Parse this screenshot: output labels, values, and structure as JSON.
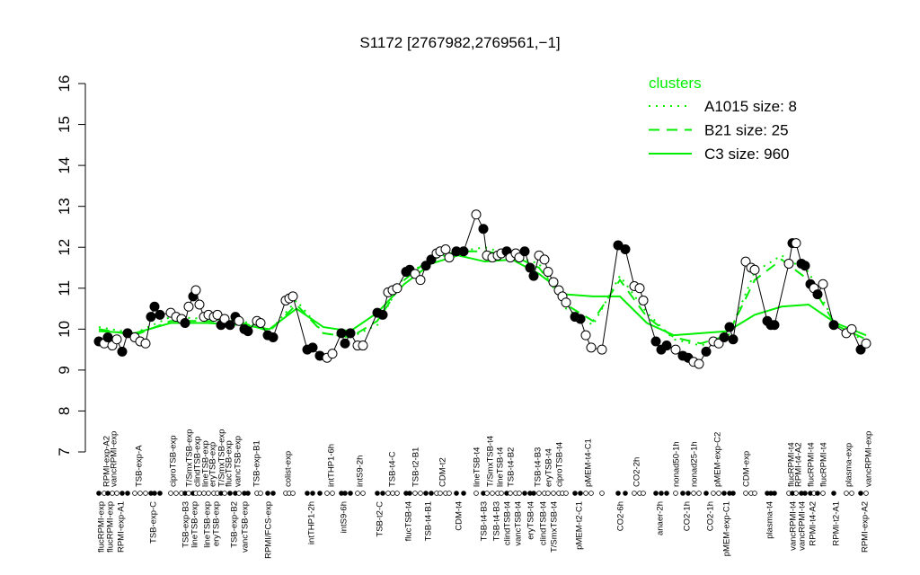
{
  "chart_data": {
    "type": "line",
    "title": "S1172 [2767982,2769561,−1]",
    "xlim": [
      100,
      975
    ],
    "ylim": [
      7,
      16
    ],
    "yticks": [
      7,
      8,
      9,
      10,
      11,
      12,
      13,
      14,
      15,
      16
    ],
    "points": {
      "color": "#000000",
      "x": [
        110,
        116,
        120,
        125,
        130,
        136,
        142,
        150,
        156,
        162,
        168,
        172,
        178,
        190,
        196,
        202,
        206,
        210,
        215,
        218,
        222,
        227,
        232,
        238,
        242,
        246,
        250,
        256,
        262,
        266,
        272,
        276,
        286,
        290,
        298,
        304,
        318,
        322,
        326,
        342,
        348,
        356,
        364,
        370,
        380,
        384,
        390,
        398,
        404,
        420,
        426,
        432,
        437,
        442,
        452,
        456,
        462,
        468,
        474,
        480,
        486,
        490,
        496,
        500,
        508,
        516,
        530,
        538,
        542,
        548,
        554,
        558,
        564,
        568,
        574,
        578,
        584,
        590,
        594,
        600,
        606,
        610,
        616,
        622,
        626,
        630,
        640,
        646,
        652,
        658,
        670,
        688,
        696,
        706,
        712,
        716,
        730,
        736,
        742,
        752,
        760,
        766,
        772,
        778,
        786,
        794,
        800,
        806,
        812,
        816,
        830,
        836,
        840,
        854,
        858,
        862,
        878,
        882,
        886,
        892,
        896,
        902,
        906,
        910,
        916,
        928,
        942,
        948,
        958,
        964
      ],
      "values": [
        9.7,
        9.65,
        9.8,
        9.6,
        9.75,
        9.45,
        9.9,
        9.8,
        9.7,
        9.65,
        10.3,
        10.55,
        10.35,
        10.4,
        10.3,
        10.25,
        10.15,
        10.55,
        10.8,
        10.95,
        10.6,
        10.3,
        10.35,
        10.3,
        10.35,
        10.1,
        10.25,
        10.1,
        10.3,
        10.2,
        10.0,
        9.95,
        10.2,
        10.15,
        9.85,
        9.8,
        10.7,
        10.75,
        10.8,
        9.5,
        9.55,
        9.35,
        9.3,
        9.4,
        9.9,
        9.65,
        9.9,
        9.6,
        9.6,
        10.4,
        10.35,
        10.9,
        10.95,
        11.0,
        11.4,
        11.45,
        11.35,
        11.2,
        11.55,
        11.7,
        11.85,
        11.9,
        11.95,
        11.75,
        11.9,
        11.9,
        12.8,
        12.45,
        11.8,
        11.75,
        11.8,
        11.85,
        11.9,
        11.75,
        11.85,
        11.75,
        11.9,
        11.5,
        11.3,
        11.8,
        11.7,
        11.4,
        11.15,
        10.95,
        10.8,
        10.65,
        10.3,
        10.25,
        9.85,
        9.55,
        9.5,
        12.05,
        11.95,
        11.05,
        11.0,
        10.7,
        9.7,
        9.5,
        9.6,
        9.5,
        9.35,
        9.3,
        9.2,
        9.15,
        9.45,
        9.7,
        9.65,
        9.8,
        10.05,
        9.75,
        11.65,
        11.5,
        11.45,
        10.2,
        10.1,
        10.1,
        11.6,
        12.1,
        12.1,
        11.6,
        11.55,
        11.1,
        11.0,
        10.85,
        11.1,
        10.1,
        9.9,
        10.0,
        9.5,
        9.65
      ],
      "filled": [
        true,
        false,
        true,
        false,
        false,
        true,
        true,
        false,
        false,
        false,
        true,
        true,
        true,
        false,
        false,
        false,
        true,
        false,
        true,
        false,
        false,
        false,
        false,
        false,
        false,
        true,
        false,
        true,
        true,
        false,
        true,
        true,
        false,
        false,
        true,
        true,
        false,
        false,
        false,
        true,
        true,
        true,
        false,
        false,
        true,
        true,
        true,
        false,
        false,
        true,
        true,
        false,
        false,
        false,
        true,
        true,
        false,
        false,
        true,
        true,
        false,
        false,
        false,
        false,
        true,
        true,
        false,
        true,
        false,
        false,
        false,
        false,
        true,
        false,
        false,
        false,
        true,
        true,
        true,
        false,
        false,
        false,
        false,
        false,
        false,
        false,
        true,
        true,
        false,
        false,
        false,
        true,
        true,
        false,
        false,
        false,
        true,
        true,
        true,
        false,
        true,
        true,
        false,
        false,
        true,
        false,
        false,
        true,
        true,
        true,
        false,
        false,
        false,
        true,
        true,
        true,
        false,
        true,
        false,
        true,
        true,
        true,
        false,
        true,
        false,
        true,
        false,
        false,
        true,
        false
      ]
    },
    "legend_title": "clusters",
    "series": [
      {
        "name": "A1015 size: 8",
        "color": "#00ee00",
        "linestyle": "dotted",
        "x": [
          110,
          150,
          190,
          230,
          270,
          300,
          330,
          360,
          390,
          420,
          450,
          480,
          510,
          540,
          570,
          600,
          630,
          660,
          690,
          720,
          750,
          780,
          810,
          840,
          870,
          900,
          930,
          964
        ],
        "values": [
          10.05,
          9.9,
          10.3,
          10.25,
          10.2,
          9.95,
          10.7,
          9.9,
          9.8,
          10.1,
          11.3,
          11.7,
          11.9,
          12.0,
          11.8,
          11.6,
          10.5,
          10.1,
          11.3,
          10.4,
          9.75,
          9.6,
          9.8,
          11.4,
          11.8,
          11.4,
          10.1,
          9.7
        ]
      },
      {
        "name": "B21 size: 25",
        "color": "#00ee00",
        "linestyle": "dashed",
        "x": [
          110,
          150,
          190,
          230,
          270,
          300,
          330,
          360,
          390,
          420,
          450,
          480,
          510,
          540,
          570,
          600,
          630,
          660,
          690,
          720,
          750,
          780,
          810,
          840,
          870,
          900,
          930,
          964
        ],
        "values": [
          10.0,
          9.85,
          10.2,
          10.2,
          10.15,
          9.95,
          10.6,
          9.9,
          9.8,
          10.2,
          11.2,
          11.75,
          11.9,
          11.9,
          11.8,
          11.5,
          10.6,
          10.2,
          11.2,
          10.3,
          9.8,
          9.65,
          9.85,
          11.2,
          11.7,
          11.2,
          10.1,
          9.75
        ]
      },
      {
        "name": "C3 size: 960",
        "color": "#00ee00",
        "linestyle": "solid",
        "x": [
          110,
          150,
          190,
          230,
          270,
          300,
          330,
          360,
          390,
          420,
          450,
          480,
          510,
          540,
          570,
          600,
          630,
          660,
          690,
          720,
          750,
          780,
          810,
          840,
          870,
          900,
          930,
          964
        ],
        "values": [
          9.95,
          9.9,
          10.15,
          10.15,
          10.1,
          10.0,
          10.5,
          10.05,
          9.95,
          10.4,
          11.1,
          11.6,
          11.8,
          11.65,
          11.7,
          11.35,
          10.85,
          10.8,
          10.8,
          10.15,
          9.85,
          9.9,
          9.95,
          10.35,
          10.55,
          10.6,
          10.15,
          9.85
        ]
      }
    ],
    "xticks_top": [
      {
        "value": 118,
        "label": "RPMI-exp-A2"
      },
      {
        "value": 126,
        "label": "vancRPMI-exp"
      },
      {
        "value": 154,
        "label": "TSB-exp-A"
      },
      {
        "value": 192,
        "label": "ciproTSB-exp"
      },
      {
        "value": 210,
        "label": "T/SmxTSB-exp"
      },
      {
        "value": 219,
        "label": "clindTSB-exp"
      },
      {
        "value": 228,
        "label": "lineTSB-exp"
      },
      {
        "value": 236,
        "label": "eryTSB-exp"
      },
      {
        "value": 246,
        "label": "T/SmxTSB-exp"
      },
      {
        "value": 254,
        "label": "flucTSB-exp"
      },
      {
        "value": 264,
        "label": "vancTSB-exp"
      },
      {
        "value": 285,
        "label": "TSB-exp-B1"
      },
      {
        "value": 320,
        "label": "colist-exp"
      },
      {
        "value": 368,
        "label": "intTHP1-6h"
      },
      {
        "value": 400,
        "label": "intS9-2h"
      },
      {
        "value": 436,
        "label": "TSB-t4-C"
      },
      {
        "value": 462,
        "label": "TSB-t2-B1"
      },
      {
        "value": 492,
        "label": "CDM-t2"
      },
      {
        "value": 530,
        "label": "lineTSB-t4"
      },
      {
        "value": 545,
        "label": "T/SmxTSB-t4"
      },
      {
        "value": 556,
        "label": "lineTSB-t4"
      },
      {
        "value": 568,
        "label": "TSB-t4-B2"
      },
      {
        "value": 598,
        "label": "TSB-t4-B3"
      },
      {
        "value": 610,
        "label": "eryTSB-t4"
      },
      {
        "value": 622,
        "label": "ciproTSB-t4"
      },
      {
        "value": 654,
        "label": "pMEM-t4-C1"
      },
      {
        "value": 708,
        "label": "CO2-2h"
      },
      {
        "value": 752,
        "label": "nonad50-1h"
      },
      {
        "value": 772,
        "label": "nonad25-1h"
      },
      {
        "value": 798,
        "label": "pMEM-exp-C2"
      },
      {
        "value": 830,
        "label": "CDM-exp"
      },
      {
        "value": 880,
        "label": "flucRPMI-t4"
      },
      {
        "value": 888,
        "label": "RPMI-t4-A2"
      },
      {
        "value": 902,
        "label": "flucRPMI-t4"
      },
      {
        "value": 916,
        "label": "flucRPMI-t4"
      },
      {
        "value": 944,
        "label": "plasma-exp"
      },
      {
        "value": 966,
        "label": "vancRPMI-exp"
      }
    ],
    "xticks_bottom": [
      {
        "value": 112,
        "label": "flucRPMI-exp"
      },
      {
        "value": 122,
        "label": "flucRPMI-exp"
      },
      {
        "value": 134,
        "label": "RPMI-exp-A1"
      },
      {
        "value": 170,
        "label": "TSB-exp-C"
      },
      {
        "value": 206,
        "label": "TSB-exp-B3"
      },
      {
        "value": 216,
        "label": "lineTSB-exp"
      },
      {
        "value": 230,
        "label": "lineTSB-exp"
      },
      {
        "value": 240,
        "label": "eryTSB-exp"
      },
      {
        "value": 260,
        "label": "TSB-exp-B2"
      },
      {
        "value": 272,
        "label": "vancTSB-exp"
      },
      {
        "value": 298,
        "label": "RPMI/FCS-exp"
      },
      {
        "value": 346,
        "label": "intTHP1-2h"
      },
      {
        "value": 382,
        "label": "intS9-6h"
      },
      {
        "value": 422,
        "label": "TSB-t2-C"
      },
      {
        "value": 454,
        "label": "flucTSB-t4"
      },
      {
        "value": 476,
        "label": "TSB-t4-B1"
      },
      {
        "value": 510,
        "label": "CDM-t4"
      },
      {
        "value": 538,
        "label": "TSB-t4-B3"
      },
      {
        "value": 552,
        "label": "TSB-t4-B3"
      },
      {
        "value": 564,
        "label": "clindTSB-t4"
      },
      {
        "value": 576,
        "label": "vancTSB-t4"
      },
      {
        "value": 590,
        "label": "eryTSB-t4"
      },
      {
        "value": 604,
        "label": "clindTSB-t4"
      },
      {
        "value": 616,
        "label": "T/SmxTSB-t4"
      },
      {
        "value": 644,
        "label": "pMEM-t2-C1"
      },
      {
        "value": 690,
        "label": "CO2-6h"
      },
      {
        "value": 734,
        "label": "anaer-2h"
      },
      {
        "value": 764,
        "label": "CO2-1h"
      },
      {
        "value": 790,
        "label": "CO2-1h"
      },
      {
        "value": 808,
        "label": "pMEM-exp-C1"
      },
      {
        "value": 856,
        "label": "plasma-t4"
      },
      {
        "value": 882,
        "label": "vancRPMI-t4"
      },
      {
        "value": 892,
        "label": "vancRPMI-t4"
      },
      {
        "value": 904,
        "label": "RPMI-t4-A2"
      },
      {
        "value": 930,
        "label": "RPMI-t2-A1"
      },
      {
        "value": 962,
        "label": "RPMI-exp-A2"
      }
    ]
  }
}
